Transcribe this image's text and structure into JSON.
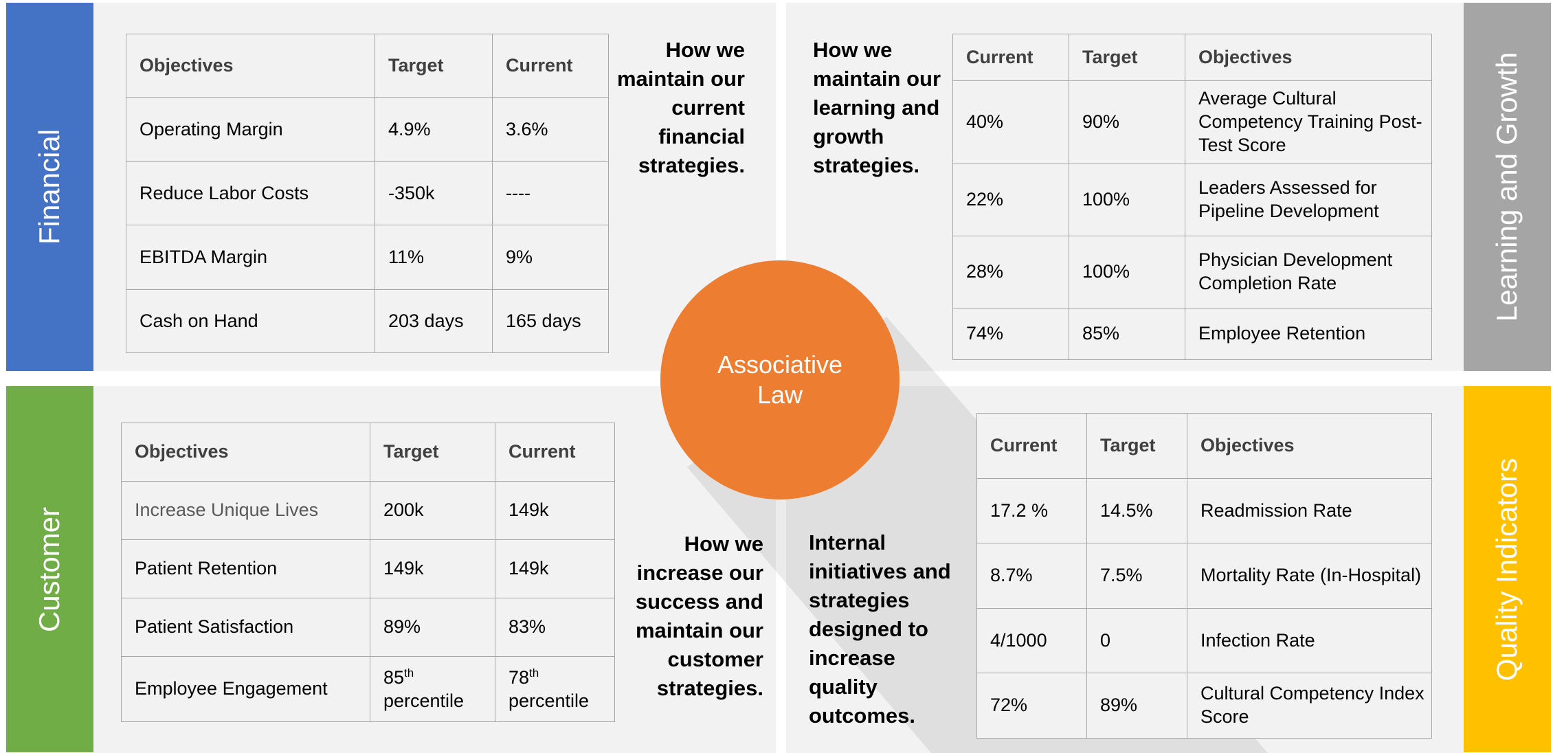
{
  "center": {
    "label": "Associative Law"
  },
  "financial": {
    "side_label": "Financial",
    "description": [
      "How we",
      "maintain our",
      "current",
      "financial",
      "strategies."
    ],
    "table": {
      "header": [
        "Objectives",
        "Target",
        "Current"
      ],
      "rows": [
        [
          "Operating Margin",
          "4.9%",
          "3.6%"
        ],
        [
          "Reduce Labor Costs",
          "-350k",
          "----"
        ],
        [
          "EBITDA Margin",
          "11%",
          "9%"
        ],
        [
          "Cash on Hand",
          "203 days",
          "165 days"
        ]
      ]
    }
  },
  "learning": {
    "side_label": "Learning and Growth",
    "description": [
      "How we",
      "maintain our",
      "learning and",
      "growth",
      "strategies."
    ],
    "table": {
      "header": [
        "Current",
        "Target",
        "Objectives"
      ],
      "rows": [
        [
          "40%",
          "90%",
          "Average Cultural Competency Training Post-Test Score"
        ],
        [
          "22%",
          "100%",
          "Leaders Assessed for Pipeline Development"
        ],
        [
          "28%",
          "100%",
          "Physician Development Completion Rate"
        ],
        [
          "74%",
          "85%",
          "Employee Retention"
        ]
      ]
    }
  },
  "customer": {
    "side_label": "Customer",
    "description": [
      "How we",
      "increase our",
      "success and",
      "maintain our",
      "customer",
      "strategies."
    ],
    "table": {
      "header": [
        "Objectives",
        "Target",
        "Current"
      ],
      "rows": [
        [
          "Increase Unique Lives",
          "200k",
          "149k"
        ],
        [
          "Patient Retention",
          "149k",
          "149k"
        ],
        [
          "Patient Satisfaction",
          "89%",
          "83%"
        ],
        [
          "Employee Engagement",
          {
            "base": "85",
            "sup": "th",
            "rest": "percentile"
          },
          {
            "base": "78",
            "sup": "th",
            "rest": "percentile"
          }
        ]
      ]
    }
  },
  "quality": {
    "side_label": "Quality Indicators",
    "description": [
      "Internal",
      "initiatives and",
      "strategies",
      "designed to",
      "increase",
      "quality",
      "outcomes."
    ],
    "table": {
      "header": [
        "Current",
        "Target",
        "Objectives"
      ],
      "rows": [
        [
          "17.2 %",
          "14.5%",
          "Readmission Rate"
        ],
        [
          "8.7%",
          "7.5%",
          "Mortality Rate (In-Hospital)"
        ],
        [
          "4/1000",
          "0",
          "Infection Rate"
        ],
        [
          "72%",
          "89%",
          "Cultural Competency Index Score"
        ]
      ]
    }
  }
}
